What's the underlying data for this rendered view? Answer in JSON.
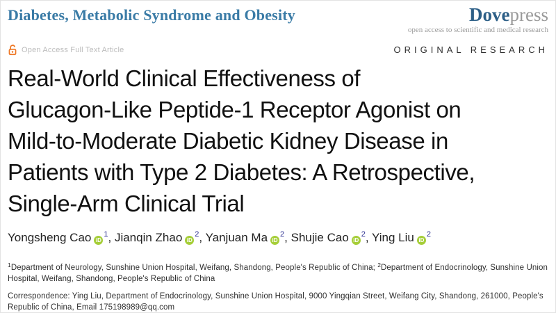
{
  "header": {
    "journal_name": "Diabetes, Metabolic Syndrome and Obesity",
    "publisher": {
      "brand_primary": "Dove",
      "brand_secondary": "press",
      "tagline": "open access to scientific and medical research"
    }
  },
  "article_meta": {
    "open_access_label": "Open Access Full Text Article",
    "article_type": "ORIGINAL RESEARCH"
  },
  "title_lines": [
    "Real-World Clinical Effectiveness of",
    "Glucagon-Like Peptide-1 Receptor Agonist on",
    "Mild-to-Moderate Diabetic Kidney Disease in",
    "Patients with Type 2 Diabetes: A Retrospective,",
    "Single-Arm Clinical Trial"
  ],
  "authors": [
    {
      "name": "Yongsheng Cao",
      "orcid_icon": "orcid-icon",
      "affiliation_sup": "1"
    },
    {
      "name": "Jianqin Zhao",
      "orcid_icon": "orcid-icon",
      "affiliation_sup": "2"
    },
    {
      "name": "Yanjuan Ma",
      "orcid_icon": "orcid-icon",
      "affiliation_sup": "2"
    },
    {
      "name": "Shujie Cao",
      "orcid_icon": "orcid-icon",
      "affiliation_sup": "2"
    },
    {
      "name": "Ying Liu",
      "orcid_icon": "orcid-icon",
      "affiliation_sup": "2"
    }
  ],
  "author_separator": ", ",
  "affiliations": {
    "separator": "; ",
    "items": [
      {
        "sup": "1",
        "text": "Department of Neurology, Sunshine Union Hospital, Weifang, Shandong, People's Republic of China"
      },
      {
        "sup": "2",
        "text": "Department of Endocrinology, Sunshine Union Hospital, Weifang, Shandong, People's Republic of China"
      }
    ]
  },
  "correspondence": {
    "text": "Correspondence: Ying Liu, Department of Endocrinology, Sunshine Union Hospital, 9000 Yingqian Street, Weifang City, Shandong, 261000, People's Republic of China, Email ",
    "email": "175198989@qq.com"
  },
  "icons": {
    "open_access": "open-access-lock-icon",
    "orcid": "orcid-icon"
  },
  "colors": {
    "journal_blue": "#3a7ba6",
    "dove_navy": "#2d5f87",
    "press_gray": "#9a9a9a",
    "open_access_orange": "#ee7623",
    "orcid_green": "#a6ce39",
    "superscript_blue": "#2e3192",
    "title_black": "#111111"
  }
}
